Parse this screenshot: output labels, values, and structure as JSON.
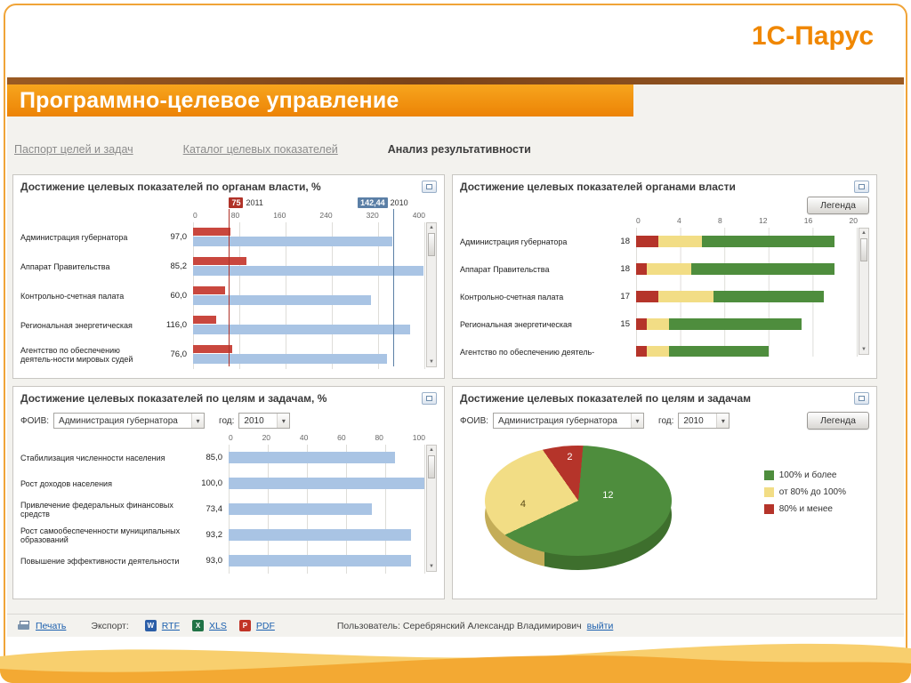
{
  "slide": {
    "brand": "1С-Парус",
    "title": "Программно-целевое управление"
  },
  "ui_colors": {
    "accent_orange": "#ee8506",
    "brand_orange": "#f08700",
    "link_blue": "#1b5fae"
  },
  "tabs": [
    {
      "label": "Паспорт целей и задач",
      "active": false
    },
    {
      "label": "Каталог целевых показателей",
      "active": false
    },
    {
      "label": "Анализ результативности",
      "active": true
    }
  ],
  "panels": {
    "p1": {
      "title": "Достижение целевых показателей по органам власти, %"
    },
    "p2": {
      "title": "Достижение целевых показателей органами власти",
      "legend_button": "Легенда"
    },
    "p3": {
      "title": "Достижение целевых показателей по целям и задачам, %",
      "filters": {
        "foiv_label": "ФОИВ:",
        "foiv_value": "Администрация губернатора",
        "year_label": "год:",
        "year_value": "2010"
      }
    },
    "p4": {
      "title": "Достижение целевых показателей по целям и задачам",
      "legend_button": "Легенда",
      "filters": {
        "foiv_label": "ФОИВ:",
        "foiv_value": "Администрация губернатора",
        "year_label": "год:",
        "year_value": "2010"
      }
    }
  },
  "footer": {
    "print": "Печать",
    "export_label": "Экспорт:",
    "formats": [
      {
        "name": "RTF",
        "glyph": "W",
        "icon": "word-icon"
      },
      {
        "name": "XLS",
        "glyph": "X",
        "icon": "excel-icon"
      },
      {
        "name": "PDF",
        "glyph": "P",
        "icon": "pdf-icon"
      }
    ],
    "user_label": "Пользователь:",
    "user_name": "Серебрянский Александр Владимирович",
    "logout": "выйти"
  },
  "chart_data": [
    {
      "id": "achievement-by-authority-percent",
      "type": "bar",
      "orientation": "horizontal",
      "title": "Достижение целевых показателей по органам власти, %",
      "categories": [
        "Администрация губернатора",
        "Аппарат Правительства",
        "Контрольно-счетная палата",
        "Региональная энергетическая",
        "Агентство по обеспечению деятель-ности мировых судей"
      ],
      "value_labels": [
        "97,0",
        "85,2",
        "60,0",
        "116,0",
        "76,0"
      ],
      "xlim": [
        0,
        400
      ],
      "ticks": [
        0,
        80,
        160,
        240,
        320,
        400
      ],
      "grid": true,
      "series": [
        {
          "name": "2011",
          "color": "#c9473e",
          "values": [
            64,
            92,
            56,
            40,
            68
          ]
        },
        {
          "name": "2010",
          "color": "#a9c4e4",
          "values": [
            344,
            398,
            308,
            376,
            336
          ]
        }
      ],
      "markers": [
        {
          "label": "75",
          "series": "2011",
          "color": "#b03228",
          "x": 62
        },
        {
          "label": "142,44",
          "series": "2010",
          "color": "#5b7fa6",
          "x": 345
        }
      ]
    },
    {
      "id": "achievement-by-authority-count",
      "type": "bar",
      "orientation": "horizontal",
      "stacked": true,
      "title": "Достижение целевых показателей органами власти",
      "categories": [
        "Администрация губернатора",
        "Аппарат Правительства",
        "Контрольно-счетная палата",
        "Региональная энергетическая",
        "Агентство по обеспечению деятель-"
      ],
      "totals": [
        "18",
        "18",
        "17",
        "15",
        ""
      ],
      "xlim": [
        0,
        20
      ],
      "ticks": [
        0,
        4,
        8,
        12,
        16,
        20
      ],
      "grid": true,
      "series": [
        {
          "name": "80% и менее",
          "color": "#b5342a",
          "values": [
            2,
            1,
            2,
            1,
            1
          ]
        },
        {
          "name": "от 80% до 100%",
          "color": "#f2dd85",
          "values": [
            4,
            4,
            5,
            2,
            2
          ]
        },
        {
          "name": "100% и более",
          "color": "#4e8d3d",
          "values": [
            12,
            13,
            10,
            12,
            9
          ]
        }
      ]
    },
    {
      "id": "achievement-by-goals-percent",
      "type": "bar",
      "orientation": "horizontal",
      "title": "Достижение целевых показателей по целям и задачам, %",
      "filters": {
        "foiv": "Администрация губернатора",
        "year": "2010"
      },
      "categories": [
        "Стабилизация численности населения",
        "Рост доходов населения",
        "Привлечение федеральных финансовых средств",
        "Рост самообеспеченности муниципальных образований",
        "Повышение эффективности деятельности"
      ],
      "value_labels": [
        "85,0",
        "100,0",
        "73,4",
        "93,2",
        "93,0"
      ],
      "xlim": [
        0,
        100
      ],
      "ticks": [
        0,
        20,
        40,
        60,
        80,
        100
      ],
      "grid": true,
      "series": [
        {
          "name": "2010",
          "color": "#a9c4e4",
          "values": [
            85.0,
            100.0,
            73.4,
            93.2,
            93.0
          ]
        }
      ]
    },
    {
      "id": "achievement-by-goals-pie",
      "type": "pie",
      "style": "3d",
      "title": "Достижение целевых показателей по целям и задачам",
      "filters": {
        "foiv": "Администрация губернатора",
        "year": "2010"
      },
      "values": [
        12,
        4,
        2
      ],
      "labels": [
        "100% и более",
        "от 80% до 100%",
        "80% и менее"
      ],
      "colors": [
        "#4e8d3d",
        "#f2dd85",
        "#b5342a"
      ],
      "legend_position": "right"
    }
  ]
}
